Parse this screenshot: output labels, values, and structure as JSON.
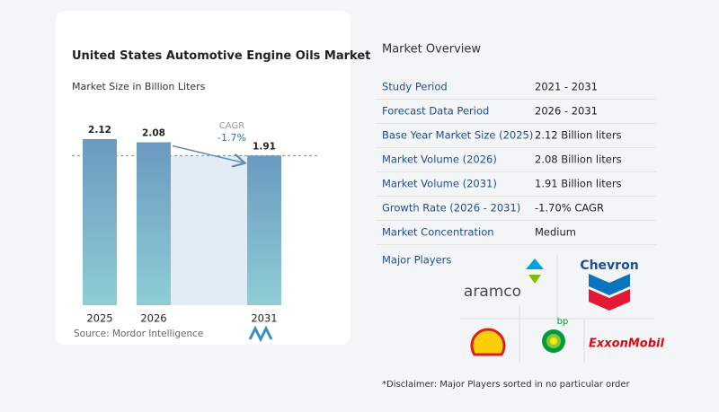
{
  "chart_data": {
    "type": "bar",
    "title": "United States Automotive Engine Oils Market",
    "subtitle": "Market Size in Billion Liters",
    "categories": [
      "2025",
      "2026",
      "2031"
    ],
    "values": [
      2.12,
      2.08,
      1.91
    ],
    "annotation": {
      "label": "CAGR",
      "value": "-1.7%"
    },
    "source": "Source:  Mordor Intelligence"
  },
  "overview": {
    "title": "Market Overview",
    "rows": [
      [
        "Study Period",
        "2021 - 2031"
      ],
      [
        "Forecast Data Period",
        "2026 - 2031"
      ],
      [
        "Base Year Market Size (2025)",
        "2.12 Billion liters"
      ],
      [
        "Market Volume (2026)",
        "2.08 Billion liters"
      ],
      [
        "Market Volume (2031)",
        "1.91 Billion liters"
      ],
      [
        "Growth Rate (2026 - 2031)",
        "-1.70% CAGR"
      ],
      [
        "Market Concentration",
        "Medium"
      ]
    ]
  },
  "players": {
    "title": "Major Players",
    "logos": [
      "aramco",
      "Chevron",
      "bp",
      "ExxonMobil"
    ]
  },
  "disclaimer": "*Disclaimer: Major Players sorted in no particular order"
}
